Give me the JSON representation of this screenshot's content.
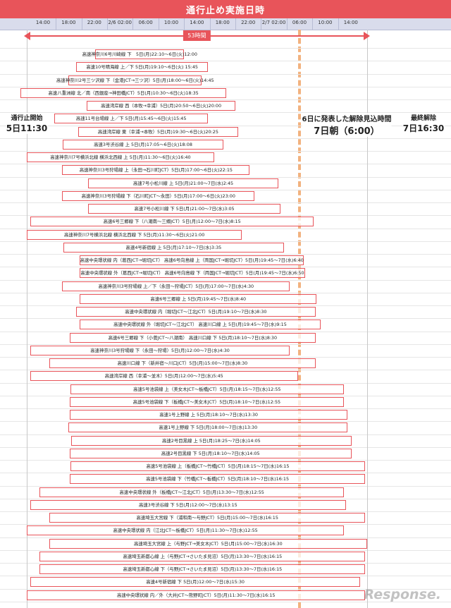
{
  "title": "通行止め実施日時",
  "span_label": "53時間",
  "watermark": "Response.",
  "colors": {
    "accent": "#e8545a",
    "header": "#d9dcec",
    "dash": "#f2b27f"
  },
  "annotations": {
    "start": {
      "small": "通行止開始",
      "big": "5日11:30"
    },
    "middle": {
      "small": "6日に発表した解除見込時間",
      "big": "7日朝（6:00）"
    },
    "end": {
      "small": "最終解除",
      "big": "7日16:30"
    }
  },
  "chart_data": {
    "type": "gantt",
    "time_unit": "hours since 5日 00:00",
    "axis_labels": [
      "14:00",
      "18:00",
      "22:00",
      "2/6 02:00",
      "06:00",
      "10:00",
      "14:00",
      "18:00",
      "22:00",
      "2/7 02:00",
      "06:00",
      "10:00",
      "14:00"
    ],
    "axis_hours": [
      14,
      18,
      22,
      26,
      30,
      34,
      38,
      42,
      46,
      50,
      54,
      58,
      62
    ],
    "span": {
      "start": 11.5,
      "end": 64.5
    },
    "dashed_marker": 54,
    "rows": [
      {
        "label": "高速神奈川6号川崎線 下　5日(月)22:10～6日(火)12:00",
        "start": 22.1667,
        "end": 36
      },
      {
        "label": "高速10号晴海線 上／下 5日(月)19:10～6日(火) 15:45",
        "start": 19.1667,
        "end": 39.75
      },
      {
        "label": "高速神奈川2号三ツ沢線 下（金港JCT→三ツ沢）5日(月)18:00～6日(火)14:45",
        "start": 18,
        "end": 38.75
      },
      {
        "label": "高速八重洲線 北／南（西銀座→神田橋JCT）5日(月)10:30～6日(火)18:35",
        "start": 10.5,
        "end": 42.5833
      },
      {
        "label": "高速湾岸線 西（本牧→幸浦）5日(月)20:50～6日(火)20:00",
        "start": 20.8333,
        "end": 44
      },
      {
        "label": "高速11号台場線 上／下 5日(月)15:45～6日(火)15:45",
        "start": 15.75,
        "end": 39.75
      },
      {
        "label": "高速湾岸線 東（幸浦→本牧）5日(月)19:30～6日(火)20:25",
        "start": 19.5,
        "end": 44.4167
      },
      {
        "label": "高速3号渋谷線 上 5日(月)17:05～6日(火)18:08",
        "start": 17.0833,
        "end": 42.1333
      },
      {
        "label": "高速神奈川7号横浜北線 横浜北西線 上 5日(月)11:30～6日(火)16:40",
        "start": 11.5,
        "end": 40.6667
      },
      {
        "label": "高速神奈川3号狩場線 上（永田→石川町JCT）5日(月)17:00～6日(火)22:15",
        "start": 17,
        "end": 46.25
      },
      {
        "label": "高速7号小松川線 上 5日(月)21:00～7日(水)2:45",
        "start": 21,
        "end": 50.75
      },
      {
        "label": "高速神奈川3号狩場線 下（石川町JCT～永田）5日(月)17:00～6日(火)23:00",
        "start": 17,
        "end": 47
      },
      {
        "label": "高速7号小松川線 下 5日(月)21:00～7日(水)3:05",
        "start": 21,
        "end": 51.0833
      },
      {
        "label": "高速6号三郷線 下（八潮南～三郷JCT）5日(月)12:00～7日(水)8:15",
        "start": 12,
        "end": 56.25
      },
      {
        "label": "高速神奈川7号横浜北線 横浜北西線 下 5日(月)11:30～6日(火)21:00",
        "start": 11.5,
        "end": 45
      },
      {
        "label": "高速4号新宿線 上 5日(月)17:10～7日(水)3:35",
        "start": 17.1667,
        "end": 51.5833
      },
      {
        "label": "高速中央環状線 内（葛西JCT→堀切JCT） 高速6号向島線 上（両国JCT→堀切JCT）5日(月)19:45～7日(水)6:40",
        "start": 19.75,
        "end": 54.6667
      },
      {
        "label": "高速中央環状線 外（葛西JCT→堀切JCT） 高速6号向島線 下（両国JCT→堀切JCT）5日(月)19:45～7日(水)6:50",
        "start": 19.75,
        "end": 54.8333
      },
      {
        "label": "高速神奈川3号狩場線 上／下（永田～狩場JCT）5日(月)17:00～7日(水)4:30",
        "start": 17,
        "end": 52.5
      },
      {
        "label": "高速6号三郷線 上 5日(月)19:45～7日(水)8:40",
        "start": 19.75,
        "end": 56.6667
      },
      {
        "label": "高速中央環状線 内（堀切JCT～江北JCT）5日(月)19:10～7日(水)8:30",
        "start": 19.1667,
        "end": 56.5
      },
      {
        "label": "高速中央環状線 外（堀切JCT～江北JCT） 高速川口線 上 5日(月)19:45～7日(水)9:15",
        "start": 19.75,
        "end": 57.25
      },
      {
        "label": "高速6号三郷線 下（小菅JCT～八潮南） 高速川口線 下 5日(月)18:10～7日(水)8:30",
        "start": 18.1667,
        "end": 56.5
      },
      {
        "label": "高速神奈川3号狩場線 下（永田～狩場）5日(月)12:00～7日(水)4:30",
        "start": 12,
        "end": 52.5
      },
      {
        "label": "高速川口線 下（新井宿～川口JCT）5日(月)15:00～7日(水)8:30",
        "start": 15,
        "end": 56.5
      },
      {
        "label": "高速湾岸線 西（幸浦～並木）5日(月)12:00～7日(水)5:45",
        "start": 12,
        "end": 53.75
      },
      {
        "label": "高速5号池袋線 上（美女木JCT～板橋JCT）5日(月)18:15～7日(水)12:55",
        "start": 18.25,
        "end": 60.9167
      },
      {
        "label": "高速5号池袋線 下（板橋JCT～美女木JCT）5日(月)18:10～7日(水)12:55",
        "start": 18.1667,
        "end": 60.9167
      },
      {
        "label": "高速1号上野線 上 5日(月)18:10～7日(水)13:30",
        "start": 18.1667,
        "end": 61.5
      },
      {
        "label": "高速1号上野線 下 5日(月)18:00～7日(水)13:30",
        "start": 18,
        "end": 61.5
      },
      {
        "label": "高速2号目黒線 上 5日(月)18:25～7日(水)14:05",
        "start": 18.4167,
        "end": 62.0833
      },
      {
        "label": "高速2号目黒線 下 5日(月)18:10～7日(水)14:05",
        "start": 18.1667,
        "end": 62.0833
      },
      {
        "label": "高速5号池袋線 上（板橋JCT～竹橋JCT）5日(月)18:15～7日(水)16:15",
        "start": 18.25,
        "end": 64.25
      },
      {
        "label": "高速5号池袋線 下（竹橋JCT～板橋JCT）5日(月)18:10～7日(水)16:15",
        "start": 18.1667,
        "end": 64.25
      },
      {
        "label": "高速中央環状線 外（板橋JCT～江北JCT）5日(月)13:30～7日(水)12:55",
        "start": 13.5,
        "end": 60.9167
      },
      {
        "label": "高速3号渋谷線 下 5日(月)12:00～7日(水)13:15",
        "start": 12,
        "end": 61.25
      },
      {
        "label": "高速埼玉大宮線 下（浦和南～与野JCT）5日(月)15:00～7日(水)16:15",
        "start": 15,
        "end": 64.25
      },
      {
        "label": "高速中央環状線 内（江北JCT～板橋JCT）5日(月)11:30～7日(水)12:55",
        "start": 11.5,
        "end": 60.9167
      },
      {
        "label": "高速埼玉大宮線 上（与野JCT→美女木JCT）5日(月)15:00～7日(水)16:30",
        "start": 15,
        "end": 64.5
      },
      {
        "label": "高速埼玉新都心線 上（与野JCT→さいたま見沼）5日(月)13:30～7日(水)16:15",
        "start": 13.5,
        "end": 64.25
      },
      {
        "label": "高速埼玉新都心線 下（与野JCT→さいたま見沼）5日(月)13:30～7日(水)16:15",
        "start": 13.5,
        "end": 64.25
      },
      {
        "label": "高速4号新宿線 下 5日(月)12:00～7日(水)15:30",
        "start": 12,
        "end": 63.5
      },
      {
        "label": "高速中央環状線 内／外（大井JCT～熊野町JCT）5日(月)11:30～7日(水)16:15",
        "start": 11.5,
        "end": 64.25
      }
    ]
  }
}
